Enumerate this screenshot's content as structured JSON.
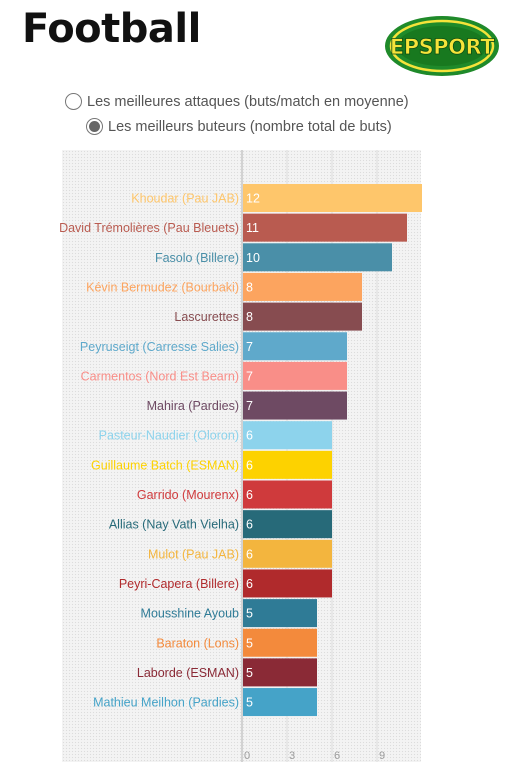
{
  "header": {
    "title": "Football",
    "logo_text": "EPSPORT"
  },
  "options": [
    {
      "label": "Les meilleures attaques (buts/match en moyenne)",
      "checked": false
    },
    {
      "label": "Les meilleurs buteurs (nombre total de buts)",
      "checked": true
    }
  ],
  "chart_data": {
    "type": "bar",
    "orientation": "horizontal",
    "categories": [
      "Khoudar (Pau JAB)",
      "David Trémolières (Pau Bleuets)",
      "Fasolo (Billere)",
      "Kévin Bermudez (Bourbaki)",
      "Lascurettes",
      "Peyruseigt (Carresse Salies)",
      "Carmentos (Nord Est Bearn)",
      "Mahira (Pardies)",
      "Pasteur-Naudier (Oloron)",
      "Guillaume Batch (ESMAN)",
      "Garrido (Mourenx)",
      "Allias (Nay Vath Vielha)",
      "Mulot (Pau JAB)",
      "Peyri-Capera (Billere)",
      "Mousshine Ayoub",
      "Baraton (Lons)",
      "Laborde (ESMAN)",
      "Mathieu Meilhon (Pardies)"
    ],
    "values": [
      12,
      11,
      10,
      8,
      8,
      7,
      7,
      7,
      6,
      6,
      6,
      6,
      6,
      6,
      5,
      5,
      5,
      5
    ],
    "colors": [
      "#fec66b",
      "#b95b50",
      "#4a8fa8",
      "#fca45f",
      "#874c50",
      "#5fa9cb",
      "#f98e88",
      "#6e4a63",
      "#8dd3ec",
      "#fdd200",
      "#cf3a3c",
      "#276a79",
      "#f3b53e",
      "#b02a2c",
      "#2f7b96",
      "#f38a3c",
      "#8a2a36",
      "#45a3c8"
    ],
    "xticks": [
      "0",
      "3",
      "6",
      "9"
    ],
    "xlim": [
      0,
      12
    ],
    "grid": true
  }
}
